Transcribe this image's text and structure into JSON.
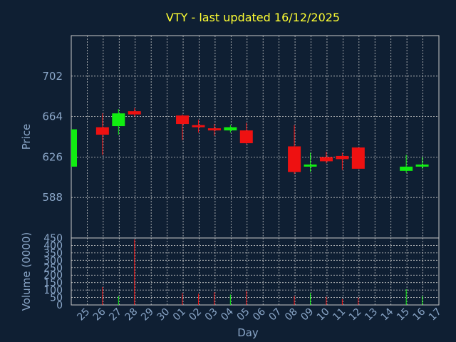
{
  "chart_data": {
    "type": "candlestick",
    "title": "VTY - last updated 16/12/2025",
    "xlabel": "Day",
    "colors": {
      "up": "#11ee11",
      "down": "#ee1111",
      "background": "#0f1f33",
      "grid": "#c8c8c8",
      "axis_text": "#8aa6c8",
      "title": "#ffff33"
    },
    "x_ticks": [
      "25",
      "26",
      "27",
      "28",
      "29",
      "30",
      "01",
      "02",
      "03",
      "04",
      "05",
      "06",
      "07",
      "08",
      "09",
      "10",
      "11",
      "12",
      "13",
      "14",
      "15",
      "16",
      "17"
    ],
    "price_panel": {
      "ylabel": "Price",
      "ylim": [
        550,
        740
      ],
      "y_ticks": [
        588,
        626,
        664,
        702
      ],
      "grid": true
    },
    "volume_panel": {
      "ylabel": "Volume (0000)",
      "ylim": [
        0,
        450
      ],
      "y_ticks": [
        0,
        50,
        100,
        150,
        200,
        250,
        300,
        350,
        400,
        450
      ],
      "grid": true
    },
    "candles": [
      {
        "day": "25",
        "open": 617,
        "high": 652,
        "low": 617,
        "close": 652,
        "volume": 0
      },
      {
        "day": "26",
        "open": 654,
        "high": 667,
        "low": 628,
        "close": 647,
        "volume": 120
      },
      {
        "day": "27",
        "open": 655,
        "high": 671,
        "low": 647,
        "close": 667,
        "volume": 60
      },
      {
        "day": "28",
        "open": 669,
        "high": 672,
        "low": 664,
        "close": 666,
        "volume": 440
      },
      {
        "day": "01",
        "open": 665,
        "high": 666,
        "low": 642,
        "close": 657,
        "volume": 80
      },
      {
        "day": "02",
        "open": 656,
        "high": 661,
        "low": 649,
        "close": 654,
        "volume": 75
      },
      {
        "day": "03",
        "open": 653,
        "high": 657,
        "low": 646,
        "close": 651,
        "volume": 85
      },
      {
        "day": "04",
        "open": 651,
        "high": 656,
        "low": 649,
        "close": 654,
        "volume": 70
      },
      {
        "day": "05",
        "open": 651,
        "high": 658,
        "low": 638,
        "close": 639,
        "volume": 95
      },
      {
        "day": "08",
        "open": 636,
        "high": 656,
        "low": 610,
        "close": 612,
        "volume": 60
      },
      {
        "day": "09",
        "open": 617,
        "high": 630,
        "low": 612,
        "close": 619,
        "volume": 80
      },
      {
        "day": "10",
        "open": 626,
        "high": 631,
        "low": 620,
        "close": 622,
        "volume": 55
      },
      {
        "day": "11",
        "open": 627,
        "high": 630,
        "low": 614,
        "close": 624,
        "volume": 40
      },
      {
        "day": "12",
        "open": 635,
        "high": 635,
        "low": 615,
        "close": 615,
        "volume": 50
      },
      {
        "day": "15",
        "open": 613,
        "high": 628,
        "low": 611,
        "close": 617,
        "volume": 105
      },
      {
        "day": "16",
        "open": 617,
        "high": 626,
        "low": 615,
        "close": 619,
        "volume": 60
      }
    ]
  }
}
